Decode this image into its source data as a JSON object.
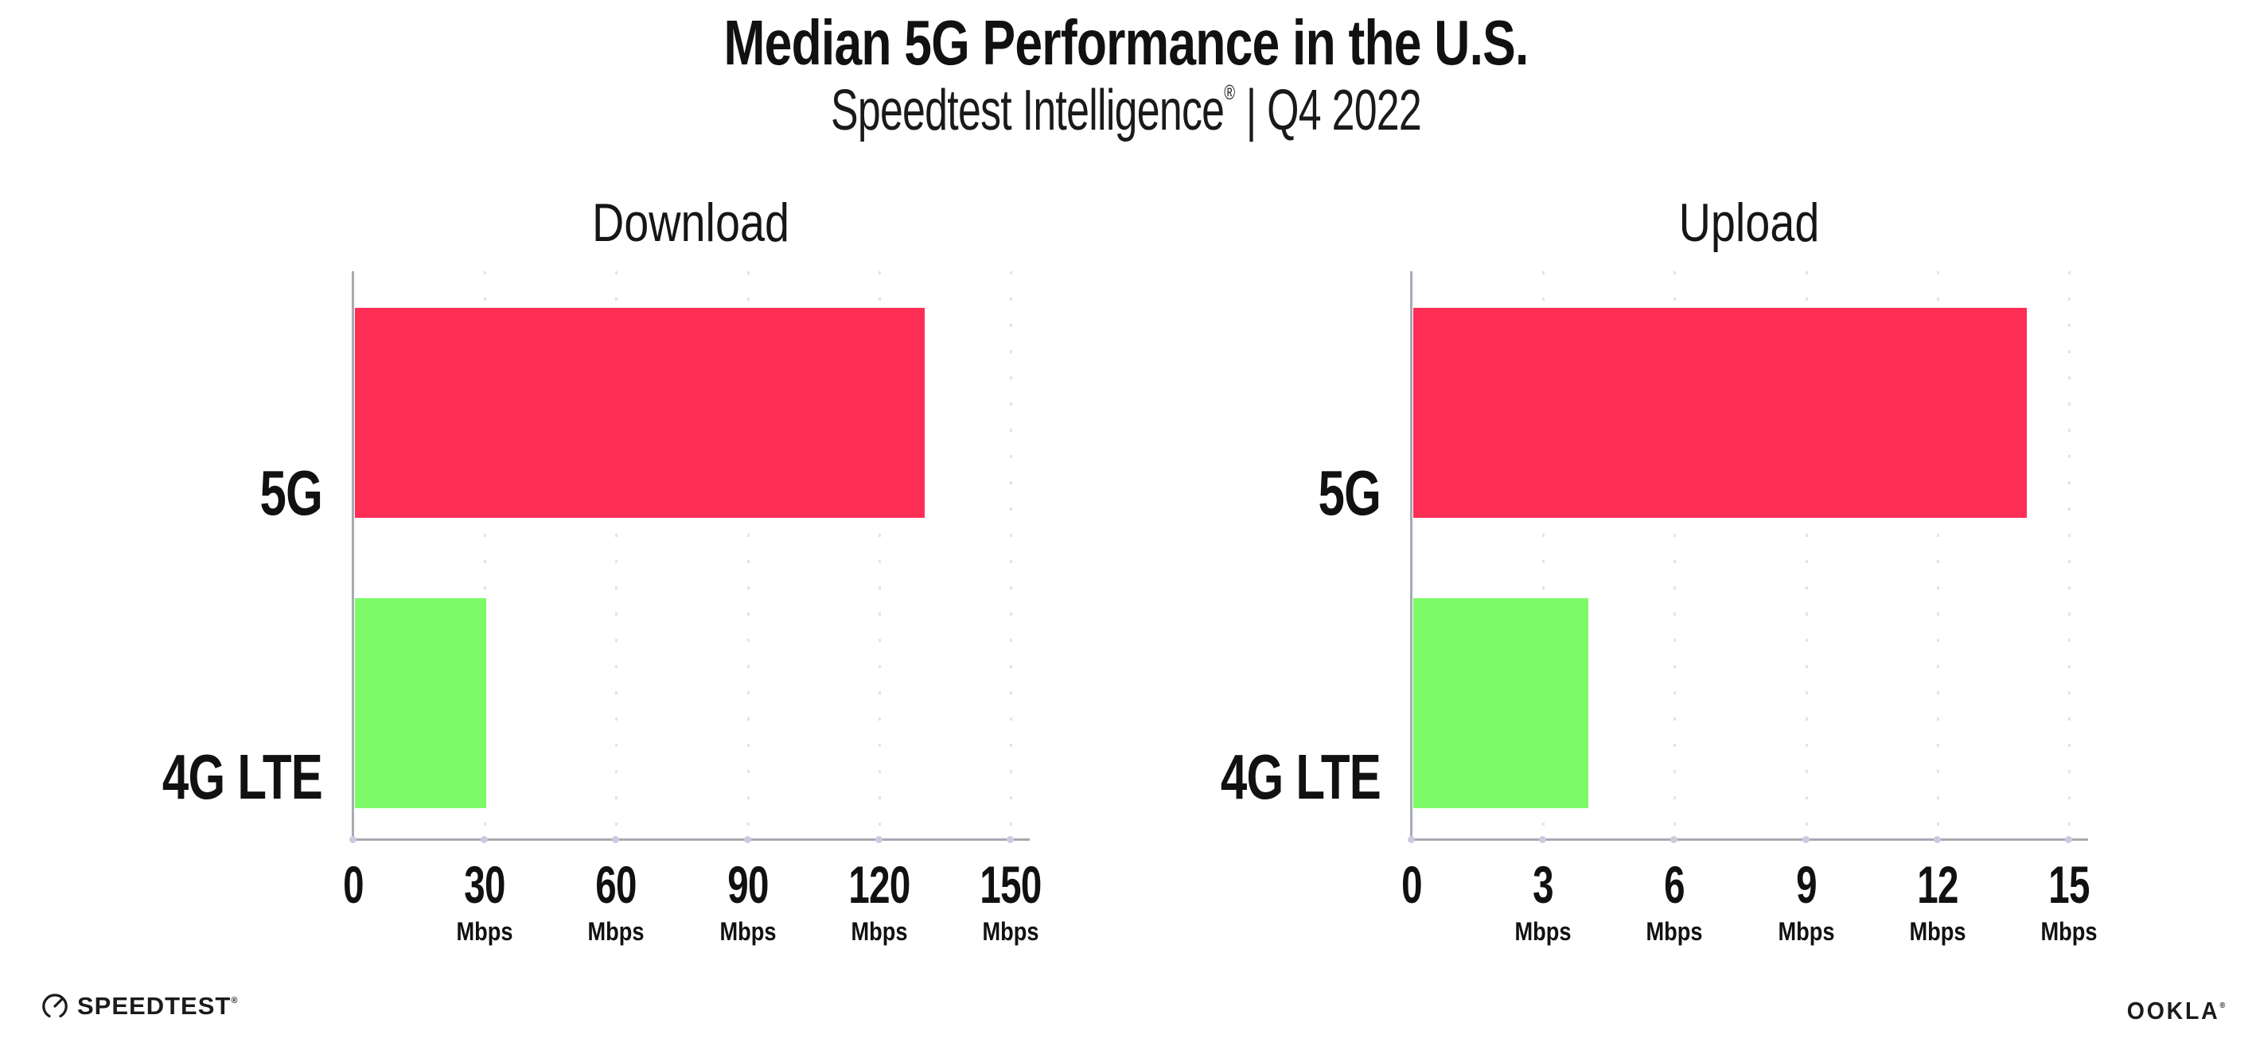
{
  "header": {
    "title": "Median 5G Performance in the U.S.",
    "subtitle_brand": "Speedtest Intelligence",
    "subtitle_reg": "®",
    "subtitle_rest": " | Q4 2022"
  },
  "chart_data": [
    {
      "type": "bar",
      "orientation": "horizontal",
      "title": "Download",
      "categories": [
        "5G",
        "4G LTE"
      ],
      "values": [
        130,
        30
      ],
      "unit": "Mbps",
      "xlabel": "",
      "ylabel": "",
      "xlim": [
        0,
        150
      ],
      "xticks": [
        0,
        30,
        60,
        90,
        120,
        150
      ],
      "bar_colors": [
        "#FF2E56",
        "#7DFB67"
      ],
      "grid": "vertical-dotted",
      "legend": "none"
    },
    {
      "type": "bar",
      "orientation": "horizontal",
      "title": "Upload",
      "categories": [
        "5G",
        "4G LTE"
      ],
      "values": [
        14,
        4
      ],
      "unit": "Mbps",
      "xlabel": "",
      "ylabel": "",
      "xlim": [
        0,
        15
      ],
      "xticks": [
        0,
        3,
        6,
        9,
        12,
        15
      ],
      "bar_colors": [
        "#FF2E56",
        "#7DFB67"
      ],
      "grid": "vertical-dotted",
      "legend": "none"
    }
  ],
  "colors": {
    "bar_5g": "#FF2E56",
    "bar_4g_lte": "#7DFB67",
    "axis_line": "#A8A9B3",
    "gridline": "#E2E3ED",
    "tick_dot": "#C9CBE0",
    "text": "#111111"
  },
  "footer": {
    "speedtest": "SPEEDTEST",
    "speedtest_mark": "®",
    "ookla": "OOKLA",
    "ookla_mark": "®"
  }
}
